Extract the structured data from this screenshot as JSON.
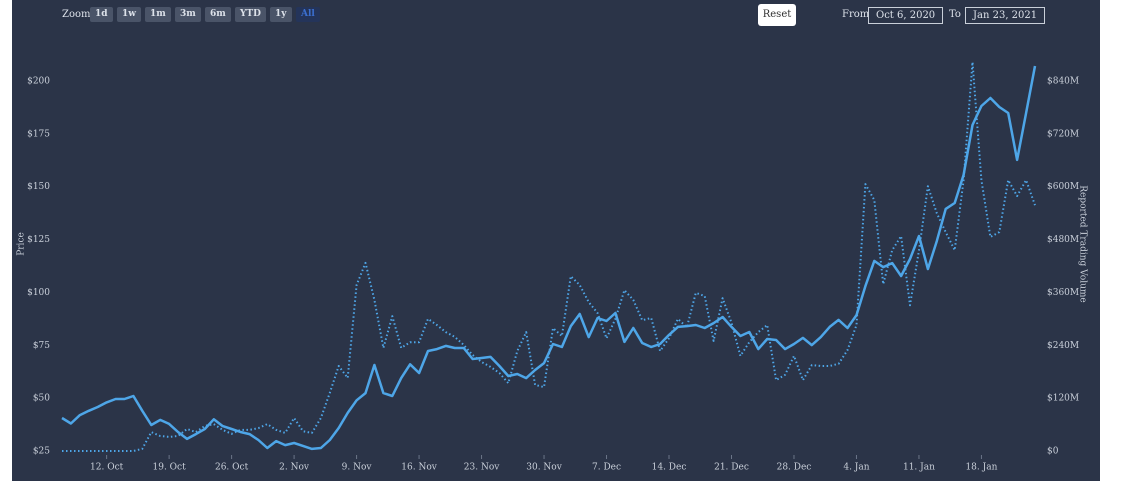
{
  "toolbar": {
    "zoom_label": "Zoom",
    "buttons": [
      "1d",
      "1w",
      "1m",
      "3m",
      "6m",
      "YTD",
      "1y",
      "All"
    ],
    "selected_button": 7,
    "reset": "Reset",
    "from_label": "From",
    "from": "Oct 6, 2020",
    "to_label": "To",
    "to": "Jan 23, 2021"
  },
  "chart_data": {
    "type": "line",
    "y_label": "Price",
    "y2_label": "Reported Trading Volume",
    "x": [
      "2020-10-07",
      "2020-10-08",
      "2020-10-09",
      "2020-10-10",
      "2020-10-11",
      "2020-10-12",
      "2020-10-13",
      "2020-10-14",
      "2020-10-15",
      "2020-10-16",
      "2020-10-17",
      "2020-10-18",
      "2020-10-19",
      "2020-10-20",
      "2020-10-21",
      "2020-10-22",
      "2020-10-23",
      "2020-10-24",
      "2020-10-25",
      "2020-10-26",
      "2020-10-27",
      "2020-10-28",
      "2020-10-29",
      "2020-10-30",
      "2020-10-31",
      "2020-11-01",
      "2020-11-02",
      "2020-11-03",
      "2020-11-04",
      "2020-11-05",
      "2020-11-06",
      "2020-11-07",
      "2020-11-08",
      "2020-11-09",
      "2020-11-10",
      "2020-11-11",
      "2020-11-12",
      "2020-11-13",
      "2020-11-14",
      "2020-11-15",
      "2020-11-16",
      "2020-11-17",
      "2020-11-18",
      "2020-11-19",
      "2020-11-20",
      "2020-11-21",
      "2020-11-22",
      "2020-11-23",
      "2020-11-24",
      "2020-11-25",
      "2020-11-26",
      "2020-11-27",
      "2020-11-28",
      "2020-11-29",
      "2020-11-30",
      "2020-12-01",
      "2020-12-02",
      "2020-12-03",
      "2020-12-04",
      "2020-12-05",
      "2020-12-06",
      "2020-12-07",
      "2020-12-08",
      "2020-12-09",
      "2020-12-10",
      "2020-12-11",
      "2020-12-12",
      "2020-12-13",
      "2020-12-14",
      "2020-12-15",
      "2020-12-16",
      "2020-12-17",
      "2020-12-18",
      "2020-12-19",
      "2020-12-20",
      "2020-12-21",
      "2020-12-22",
      "2020-12-23",
      "2020-12-24",
      "2020-12-25",
      "2020-12-26",
      "2020-12-27",
      "2020-12-28",
      "2020-12-29",
      "2020-12-30",
      "2020-12-31",
      "2021-01-01",
      "2021-01-02",
      "2021-01-03",
      "2021-01-04",
      "2021-01-05",
      "2021-01-06",
      "2021-01-07",
      "2021-01-08",
      "2021-01-09",
      "2021-01-10",
      "2021-01-11",
      "2021-01-12",
      "2021-01-13",
      "2021-01-14",
      "2021-01-15",
      "2021-01-16",
      "2021-01-17",
      "2021-01-18",
      "2021-01-19",
      "2021-01-20",
      "2021-01-21",
      "2021-01-22",
      "2021-01-23",
      "2021-01-24"
    ],
    "series": [
      {
        "color": "#4ea6e8",
        "style": "solid",
        "values": [
          40.6,
          38,
          42,
          44,
          45.8,
          48,
          49.6,
          49.6,
          51,
          44,
          37.3,
          39.7,
          37.8,
          34,
          30.7,
          33,
          35.4,
          40,
          36.8,
          35.4,
          34,
          33,
          30.2,
          26.4,
          29.7,
          27.8,
          28.8,
          27.4,
          26,
          26.4,
          30.2,
          35.9,
          43,
          49,
          52.4,
          65.7,
          52.4,
          51,
          59.5,
          66,
          61.9,
          72.3,
          73.2,
          74.7,
          73.7,
          73.7,
          68.5,
          69,
          69.5,
          65.2,
          60.5,
          61.4,
          59.5,
          63.3,
          66.6,
          75.6,
          74.2,
          84.1,
          89.8,
          78.9,
          87.9,
          86.5,
          90.3,
          76.6,
          83.2,
          76.1,
          74.2,
          75.6,
          79.9,
          83.7,
          84.1,
          84.6,
          83.2,
          85.5,
          88.4,
          83.7,
          79.4,
          81.3,
          73.2,
          78,
          77.5,
          73.2,
          75.6,
          78.5,
          75.1,
          78.9,
          83.7,
          87,
          83.2,
          89.3,
          103,
          114.9,
          112,
          113.9,
          107.8,
          115.8,
          126.7,
          111.1,
          124.3,
          139.5,
          142.3,
          155.6,
          179.2,
          188.2,
          192,
          187.7,
          184.9,
          162.7,
          184.9,
          207.1
        ]
      },
      {
        "color": "#4ea6e8",
        "style": "dotted",
        "axis": "y2",
        "values": [
          0,
          0,
          0,
          0,
          0,
          0,
          0,
          0,
          0,
          5,
          43,
          34,
          32,
          34,
          50,
          43,
          57,
          61,
          48,
          39,
          48,
          48,
          52,
          61,
          48,
          41,
          75,
          45,
          41,
          75,
          132,
          193,
          166,
          377,
          427,
          343,
          234,
          306,
          234,
          247,
          247,
          300,
          286,
          270,
          259,
          241,
          218,
          202,
          191,
          177,
          154,
          227,
          270,
          150,
          145,
          279,
          261,
          397,
          377,
          338,
          313,
          256,
          300,
          365,
          343,
          297,
          302,
          227,
          256,
          300,
          281,
          359,
          352,
          250,
          347,
          291,
          216,
          247,
          270,
          286,
          161,
          173,
          216,
          161,
          195,
          193,
          193,
          198,
          229,
          286,
          606,
          570,
          379,
          456,
          488,
          331,
          456,
          601,
          540,
          497,
          456,
          615,
          883,
          615,
          486,
          497,
          615,
          579,
          615,
          558
        ]
      }
    ],
    "xlim": [
      "2020-10-07",
      "2021-01-24"
    ],
    "xticks": [
      {
        "value": "2020-10-12",
        "label": "12. Oct"
      },
      {
        "value": "2020-10-19",
        "label": "19. Oct"
      },
      {
        "value": "2020-10-26",
        "label": "26. Oct"
      },
      {
        "value": "2020-11-02",
        "label": "2. Nov"
      },
      {
        "value": "2020-11-09",
        "label": "9. Nov"
      },
      {
        "value": "2020-11-16",
        "label": "16. Nov"
      },
      {
        "value": "2020-11-23",
        "label": "23. Nov"
      },
      {
        "value": "2020-11-30",
        "label": "30. Nov"
      },
      {
        "value": "2020-12-07",
        "label": "7. Dec"
      },
      {
        "value": "2020-12-14",
        "label": "14. Dec"
      },
      {
        "value": "2020-12-21",
        "label": "21. Dec"
      },
      {
        "value": "2020-12-28",
        "label": "28. Dec"
      },
      {
        "value": "2021-01-04",
        "label": "4. Jan"
      },
      {
        "value": "2021-01-11",
        "label": "11. Jan"
      },
      {
        "value": "2021-01-18",
        "label": "18. Jan"
      }
    ],
    "ylim": [
      25,
      210
    ],
    "yticks": [
      {
        "value": 25,
        "label": "$25"
      },
      {
        "value": 50,
        "label": "$50"
      },
      {
        "value": 75,
        "label": "$75"
      },
      {
        "value": 100,
        "label": "$100"
      },
      {
        "value": 125,
        "label": "$125"
      },
      {
        "value": 150,
        "label": "$150"
      },
      {
        "value": 175,
        "label": "$175"
      },
      {
        "value": 200,
        "label": "$200"
      }
    ],
    "y2lim": [
      0,
      888
    ],
    "y2ticks": [
      {
        "value": 0,
        "label": "$0"
      },
      {
        "value": 120,
        "label": "$120M"
      },
      {
        "value": 240,
        "label": "$240M"
      },
      {
        "value": 360,
        "label": "$360M"
      },
      {
        "value": 480,
        "label": "$480M"
      },
      {
        "value": 600,
        "label": "$600M"
      },
      {
        "value": 720,
        "label": "$720M"
      },
      {
        "value": 840,
        "label": "$840M"
      }
    ]
  }
}
